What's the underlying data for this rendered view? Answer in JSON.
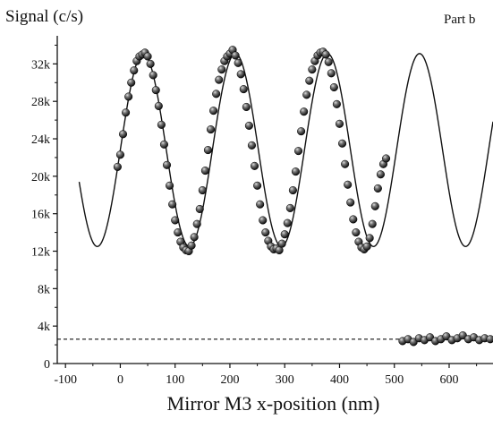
{
  "chart_data": {
    "type": "scatter",
    "title": "",
    "ylabel": "Signal (c/s)",
    "xlabel": "Mirror M3 x-position (nm)",
    "annotation": "Part b",
    "xlim": [
      -115,
      680
    ],
    "ylim": [
      0,
      35000
    ],
    "x_ticks": [
      -100,
      0,
      100,
      200,
      300,
      400,
      500,
      600
    ],
    "x_tick_labels": [
      "-100",
      "0",
      "100",
      "200",
      "300",
      "400",
      "500",
      "600"
    ],
    "y_ticks": [
      0,
      4000,
      8000,
      12000,
      16000,
      20000,
      24000,
      28000,
      32000
    ],
    "y_tick_labels": [
      "0",
      "4k",
      "8k",
      "12k",
      "16k",
      "20k",
      "24k",
      "28k",
      "32k"
    ],
    "fit_curve": {
      "style": "solid",
      "function": "offset + amplitude*cos(2*pi*(x - x0)/period)",
      "offset": 22800,
      "amplitude": 10300,
      "period": 168,
      "x0": 42,
      "x_range": [
        -75,
        680
      ]
    },
    "background_level": {
      "style": "dashed",
      "y": 2600,
      "x_range": [
        -115,
        680
      ]
    },
    "series": [
      {
        "marker": "sphere",
        "points": [
          [
            -5,
            21000
          ],
          [
            0,
            22300
          ],
          [
            5,
            24500
          ],
          [
            10,
            26800
          ],
          [
            15,
            28500
          ],
          [
            20,
            30000
          ],
          [
            25,
            31300
          ],
          [
            30,
            32300
          ],
          [
            35,
            32800
          ],
          [
            40,
            33000
          ],
          [
            45,
            33200
          ],
          [
            50,
            32800
          ],
          [
            55,
            32000
          ],
          [
            60,
            30800
          ],
          [
            65,
            29200
          ],
          [
            70,
            27500
          ],
          [
            75,
            25500
          ],
          [
            80,
            23400
          ],
          [
            85,
            21200
          ],
          [
            90,
            19000
          ],
          [
            95,
            17000
          ],
          [
            100,
            15300
          ],
          [
            105,
            14000
          ],
          [
            110,
            13000
          ],
          [
            115,
            12400
          ],
          [
            120,
            12100
          ],
          [
            125,
            12000
          ],
          [
            130,
            12600
          ],
          [
            135,
            13500
          ],
          [
            140,
            14900
          ],
          [
            145,
            16500
          ],
          [
            150,
            18500
          ],
          [
            155,
            20600
          ],
          [
            160,
            22800
          ],
          [
            165,
            25000
          ],
          [
            170,
            27000
          ],
          [
            175,
            28800
          ],
          [
            180,
            30300
          ],
          [
            185,
            31400
          ],
          [
            190,
            32300
          ],
          [
            195,
            32800
          ],
          [
            200,
            33100
          ],
          [
            205,
            33500
          ],
          [
            210,
            32900
          ],
          [
            215,
            32100
          ],
          [
            220,
            30900
          ],
          [
            225,
            29300
          ],
          [
            230,
            27400
          ],
          [
            235,
            25400
          ],
          [
            240,
            23300
          ],
          [
            245,
            21100
          ],
          [
            250,
            19000
          ],
          [
            255,
            17000
          ],
          [
            260,
            15300
          ],
          [
            265,
            14000
          ],
          [
            270,
            13100
          ],
          [
            275,
            12500
          ],
          [
            280,
            12200
          ],
          [
            285,
            12300
          ],
          [
            290,
            12100
          ],
          [
            295,
            12800
          ],
          [
            300,
            13800
          ],
          [
            305,
            15000
          ],
          [
            310,
            16600
          ],
          [
            315,
            18500
          ],
          [
            320,
            20500
          ],
          [
            325,
            22700
          ],
          [
            330,
            24800
          ],
          [
            335,
            26900
          ],
          [
            340,
            28700
          ],
          [
            345,
            30200
          ],
          [
            350,
            31400
          ],
          [
            355,
            32300
          ],
          [
            360,
            32900
          ],
          [
            365,
            33200
          ],
          [
            370,
            33300
          ],
          [
            375,
            33000
          ],
          [
            380,
            32200
          ],
          [
            385,
            31000
          ],
          [
            390,
            29500
          ],
          [
            395,
            27700
          ],
          [
            400,
            25600
          ],
          [
            405,
            23500
          ],
          [
            410,
            21300
          ],
          [
            415,
            19100
          ],
          [
            420,
            17200
          ],
          [
            425,
            15400
          ],
          [
            430,
            14000
          ],
          [
            435,
            13000
          ],
          [
            440,
            12400
          ],
          [
            445,
            12200
          ],
          [
            450,
            12500
          ],
          [
            455,
            13400
          ],
          [
            460,
            14900
          ],
          [
            465,
            16800
          ],
          [
            470,
            18700
          ],
          [
            475,
            20200
          ],
          [
            480,
            21300
          ],
          [
            485,
            21900
          ]
        ]
      },
      {
        "marker": "sphere",
        "points": [
          [
            515,
            2400
          ],
          [
            525,
            2600
          ],
          [
            535,
            2300
          ],
          [
            545,
            2700
          ],
          [
            555,
            2500
          ],
          [
            565,
            2800
          ],
          [
            575,
            2400
          ],
          [
            585,
            2600
          ],
          [
            595,
            2900
          ],
          [
            605,
            2500
          ],
          [
            615,
            2700
          ],
          [
            625,
            3000
          ],
          [
            635,
            2600
          ],
          [
            645,
            2800
          ],
          [
            655,
            2500
          ],
          [
            665,
            2700
          ],
          [
            675,
            2600
          ]
        ]
      }
    ]
  }
}
